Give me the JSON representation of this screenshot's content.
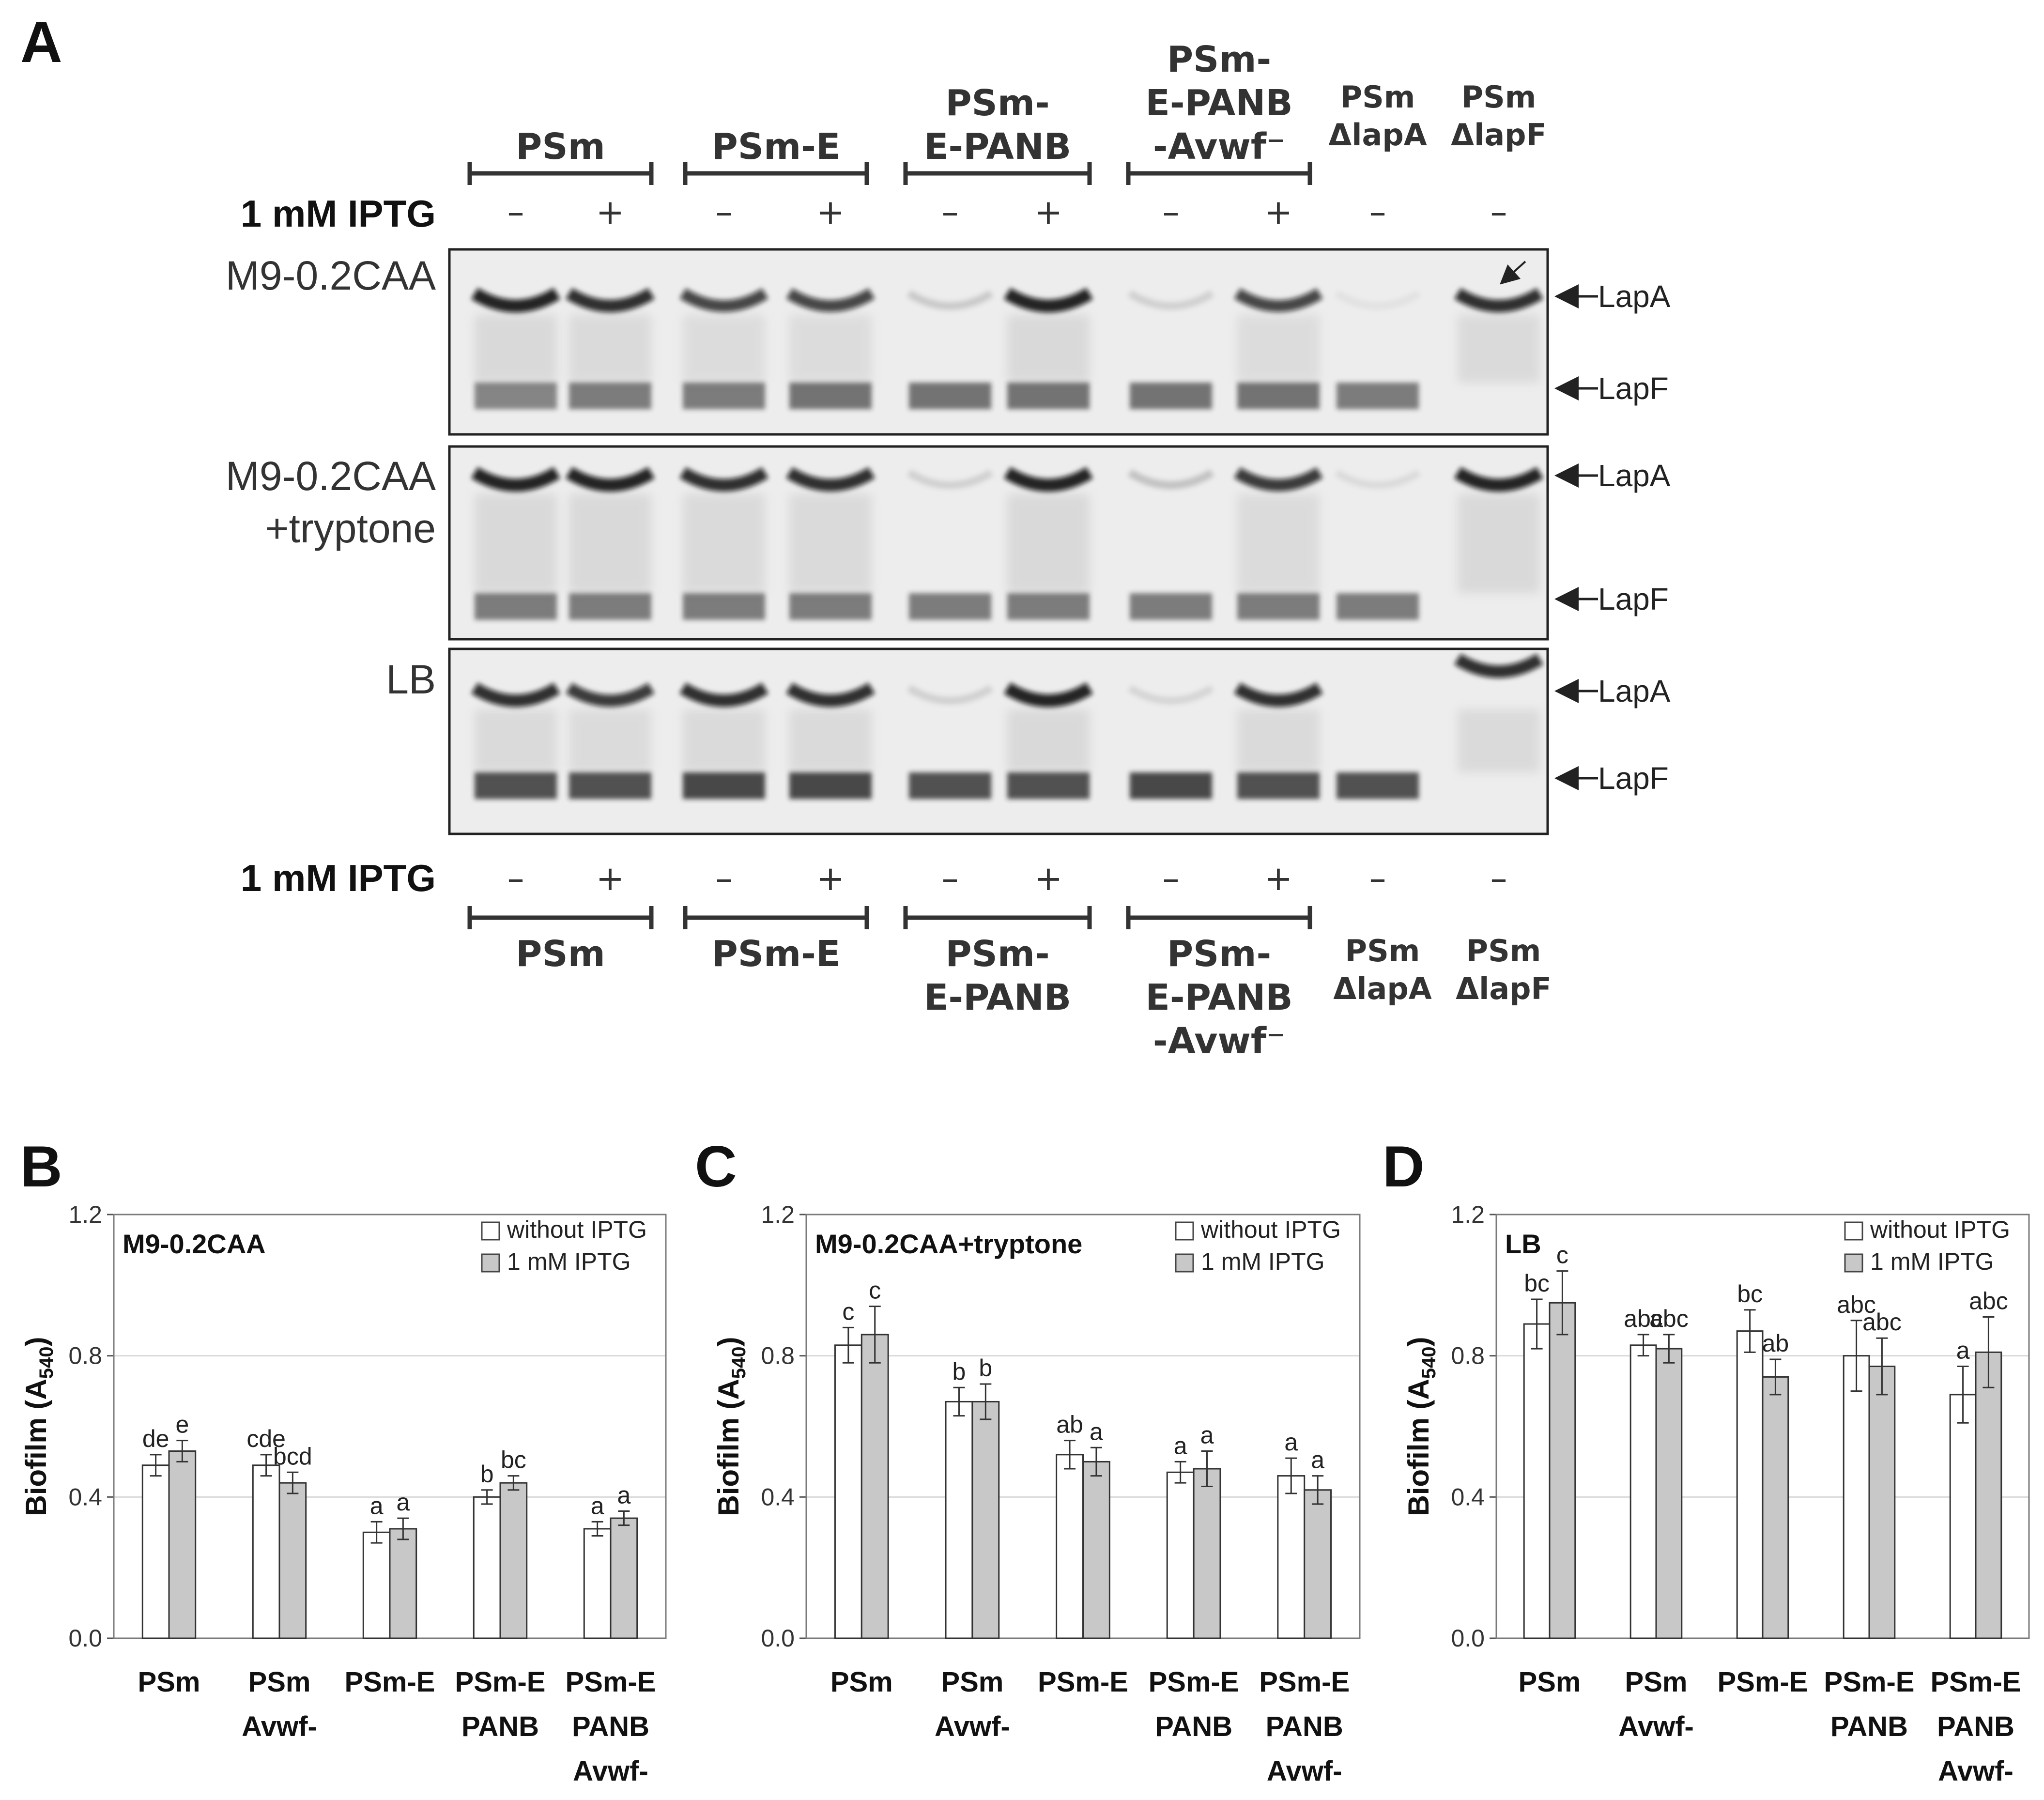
{
  "panel_a": {
    "letter": "A",
    "top_groups": [
      "PSm",
      "PSm-E",
      "PSm-|E-PANB",
      "PSm-|E-PANB|-Avwf⁻"
    ],
    "top_mutants": [
      "PSm|ΔlapA",
      "PSm|ΔlapF"
    ],
    "bottom_groups": [
      "PSm",
      "PSm-E",
      "PSm-|E-PANB",
      "PSm-|E-PANB|-Avwf⁻"
    ],
    "bottom_mutants": [
      "PSm|ΔlapA",
      "PSm|ΔlapF"
    ],
    "iptg_label": "1 mM IPTG",
    "lane_signs": [
      "–",
      "+",
      "–",
      "+",
      "–",
      "+",
      "–",
      "+",
      "–",
      "–"
    ],
    "lanes": [
      "PSm –",
      "PSm +",
      "PSm-E –",
      "PSm-E +",
      "PSm-E-PANB –",
      "PSm-E-PANB +",
      "PSm-E-PANB-Avwf⁻ –",
      "PSm-E-PANB-Avwf⁻ +",
      "PSm ΔlapA –",
      "PSm ΔlapF –"
    ],
    "gels": [
      {
        "medium": "M9-0.2CAA",
        "lapA_intensity": [
          0.9,
          0.85,
          0.75,
          0.75,
          0.15,
          0.9,
          0.12,
          0.75,
          0.05,
          0.85
        ],
        "lapF_intensity": [
          0.6,
          0.65,
          0.65,
          0.7,
          0.7,
          0.7,
          0.7,
          0.7,
          0.65,
          0.0
        ],
        "note_arrow_lane": 10
      },
      {
        "medium": "M9-0.2CAA|+tryptone",
        "lapA_intensity": [
          0.9,
          0.9,
          0.85,
          0.85,
          0.12,
          0.9,
          0.18,
          0.8,
          0.08,
          0.9
        ],
        "lapF_intensity": [
          0.65,
          0.65,
          0.65,
          0.65,
          0.65,
          0.65,
          0.65,
          0.65,
          0.65,
          0.0
        ]
      },
      {
        "medium": "LB",
        "lapA_intensity": [
          0.85,
          0.8,
          0.85,
          0.85,
          0.12,
          0.9,
          0.1,
          0.85,
          0.0,
          0.85
        ],
        "lapF_intensity": [
          0.9,
          0.9,
          0.95,
          0.95,
          0.9,
          0.9,
          0.95,
          0.9,
          0.9,
          0.0
        ]
      }
    ],
    "band_labels": {
      "lapA": "LapA",
      "lapF": "LapF"
    }
  },
  "chart_data": [
    {
      "panel": "B",
      "type": "bar",
      "title": "M9-0.2CAA",
      "ylabel": "Biofilm (A540)",
      "ylim": [
        0,
        1.2
      ],
      "yticks": [
        "0.0",
        "0.4",
        "0.8",
        "1.2"
      ],
      "categories": [
        "PSm",
        "PSm|Avwf-",
        "PSm-E",
        "PSm-E|PANB",
        "PSm-E|PANB|Avwf-"
      ],
      "legend": {
        "position": "top-right"
      },
      "series": [
        {
          "name": "without IPTG",
          "color": "#ffffff",
          "values": [
            0.49,
            0.49,
            0.3,
            0.4,
            0.31
          ],
          "errors": [
            0.03,
            0.03,
            0.03,
            0.02,
            0.02
          ],
          "labels": [
            "de",
            "cde",
            "a",
            "b",
            "a"
          ]
        },
        {
          "name": "1 mM IPTG",
          "color": "#c8c8c8",
          "values": [
            0.53,
            0.44,
            0.31,
            0.44,
            0.34
          ],
          "errors": [
            0.03,
            0.03,
            0.03,
            0.02,
            0.02
          ],
          "labels": [
            "e",
            "bcd",
            "a",
            "bc",
            "a"
          ]
        }
      ]
    },
    {
      "panel": "C",
      "type": "bar",
      "title": "M9-0.2CAA+tryptone",
      "ylabel": "Biofilm (A540)",
      "ylim": [
        0,
        1.2
      ],
      "yticks": [
        "0.0",
        "0.4",
        "0.8",
        "1.2"
      ],
      "categories": [
        "PSm",
        "PSm|Avwf-",
        "PSm-E",
        "PSm-E|PANB",
        "PSm-E|PANB|Avwf-"
      ],
      "legend": {
        "position": "top-right"
      },
      "series": [
        {
          "name": "without IPTG",
          "color": "#ffffff",
          "values": [
            0.83,
            0.67,
            0.52,
            0.47,
            0.46
          ],
          "errors": [
            0.05,
            0.04,
            0.04,
            0.03,
            0.05
          ],
          "labels": [
            "c",
            "b",
            "ab",
            "a",
            "a"
          ]
        },
        {
          "name": "1 mM IPTG",
          "color": "#c8c8c8",
          "values": [
            0.86,
            0.67,
            0.5,
            0.48,
            0.42
          ],
          "errors": [
            0.08,
            0.05,
            0.04,
            0.05,
            0.04
          ],
          "labels": [
            "c",
            "b",
            "a",
            "a",
            "a"
          ]
        }
      ]
    },
    {
      "panel": "D",
      "type": "bar",
      "title": "LB",
      "ylabel": "Biofilm (A540)",
      "ylim": [
        0,
        1.2
      ],
      "yticks": [
        "0.0",
        "0.4",
        "0.8",
        "1.2"
      ],
      "categories": [
        "PSm",
        "PSm|Avwf-",
        "PSm-E",
        "PSm-E|PANB",
        "PSm-E|PANB|Avwf-"
      ],
      "legend": {
        "position": "top-right"
      },
      "series": [
        {
          "name": "without IPTG",
          "color": "#ffffff",
          "values": [
            0.89,
            0.83,
            0.87,
            0.8,
            0.69
          ],
          "errors": [
            0.07,
            0.03,
            0.06,
            0.1,
            0.08
          ],
          "labels": [
            "bc",
            "abc",
            "bc",
            "abc",
            "a"
          ]
        },
        {
          "name": "1 mM IPTG",
          "color": "#c8c8c8",
          "values": [
            0.95,
            0.82,
            0.74,
            0.77,
            0.81
          ],
          "errors": [
            0.09,
            0.04,
            0.05,
            0.08,
            0.1
          ],
          "labels": [
            "c",
            "abc",
            "ab",
            "abc",
            "abc"
          ]
        }
      ]
    }
  ]
}
